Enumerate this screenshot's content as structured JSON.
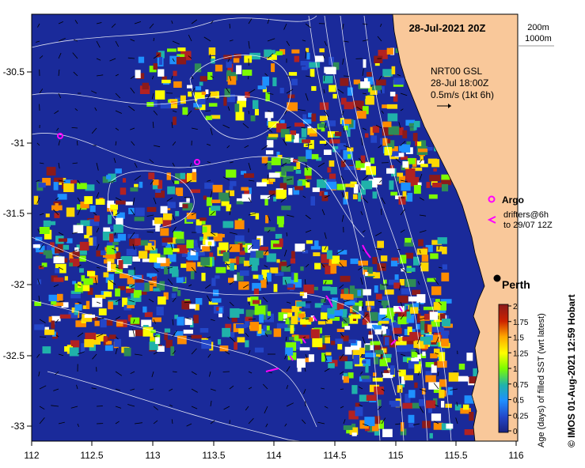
{
  "title": "28-Jul-2021 20Z",
  "depth_legend": {
    "line1": "200m",
    "line2": "1000m"
  },
  "current_product": {
    "line1": "NRT00 GSL",
    "line2": "28-Jul 18:00Z",
    "line3": "0.5m/s (1kt 6h)"
  },
  "legend": {
    "argo": "Argo",
    "drifters_line1": "drifters@6h",
    "drifters_line2": "to 29/07 12Z"
  },
  "city": "Perth",
  "colorbar": {
    "label": "Age (days) of filled SST (wrt latest)",
    "ticks": [
      "2",
      "1.75",
      "1.5",
      "1.25",
      "1",
      "0.75",
      "0.5",
      "0.25",
      "0"
    ],
    "colors": [
      "#a0522d",
      "#b22222",
      "#ff8c00",
      "#ffd700",
      "#ffff00",
      "#adff2f",
      "#32cd32",
      "#2e8b57",
      "#00bfff",
      "#4169e1",
      "#1e3a8a"
    ]
  },
  "credit": "© IMOS 01-Aug-2021 12:59 Hobart",
  "x_ticks": [
    "112",
    "112.5",
    "113",
    "113.5",
    "114",
    "114.5",
    "115",
    "115.5",
    "116"
  ],
  "y_ticks": [
    "-30.5",
    "-31",
    "-31.5",
    "-32",
    "-32.5",
    "-33"
  ],
  "colors": {
    "ocean": "#1a2a9a",
    "land": "#f9c89a",
    "argo": "#ff00ff",
    "drifter": "#ff00ff"
  }
}
